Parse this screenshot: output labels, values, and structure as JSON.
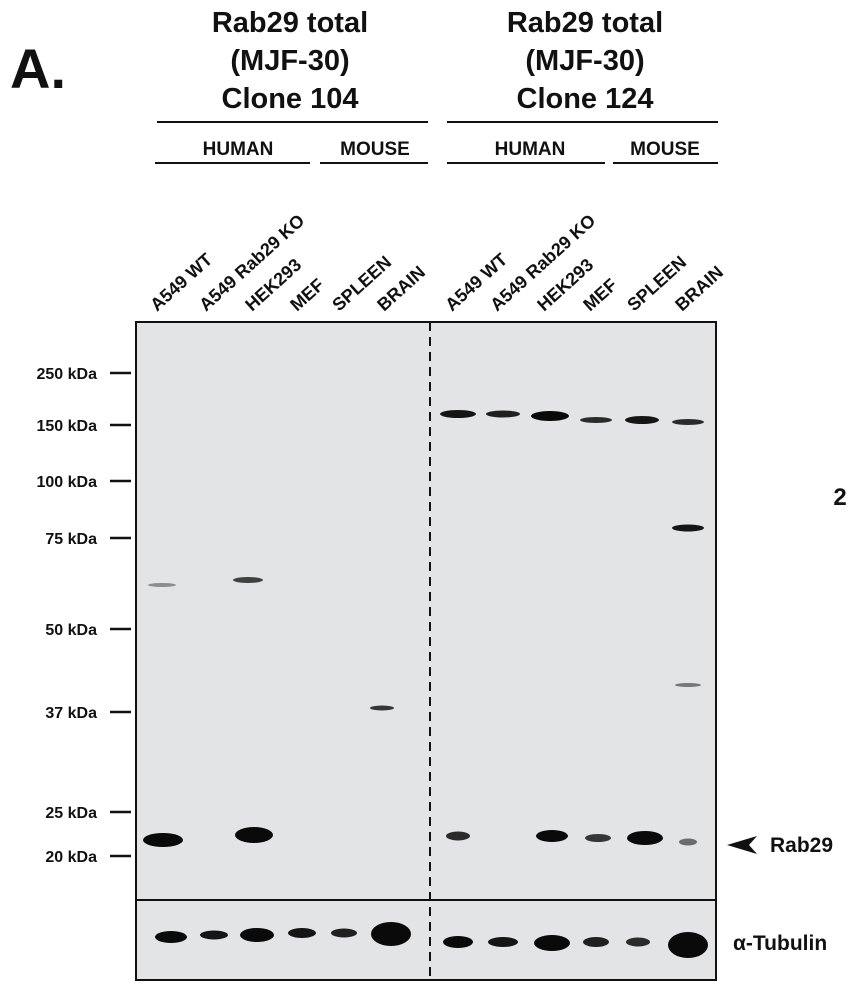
{
  "panel_label": "A.",
  "groups": [
    {
      "title_lines": [
        "Rab29 total",
        "(MJF-30)",
        "Clone 104"
      ],
      "species": [
        "HUMAN",
        "MOUSE"
      ],
      "lanes": [
        "A549 WT",
        "A549 Rab29 KO",
        "HEK293",
        "MEF",
        "SPLEEN",
        "BRAIN"
      ]
    },
    {
      "title_lines": [
        "Rab29 total",
        "(MJF-30)",
        "Clone 124"
      ],
      "species": [
        "HUMAN",
        "MOUSE"
      ],
      "lanes": [
        "A549 WT",
        "A549 Rab29 KO",
        "HEK293",
        "MEF",
        "SPLEEN",
        "BRAIN"
      ]
    }
  ],
  "markers": [
    "250 kDa",
    "150 kDa",
    "100 kDa",
    "75 kDa",
    "50 kDa",
    "37 kDa",
    "25 kDa",
    "20 kDa"
  ],
  "side_label": "2",
  "target_label": "Rab29",
  "loading_label": "α-Tubulin"
}
